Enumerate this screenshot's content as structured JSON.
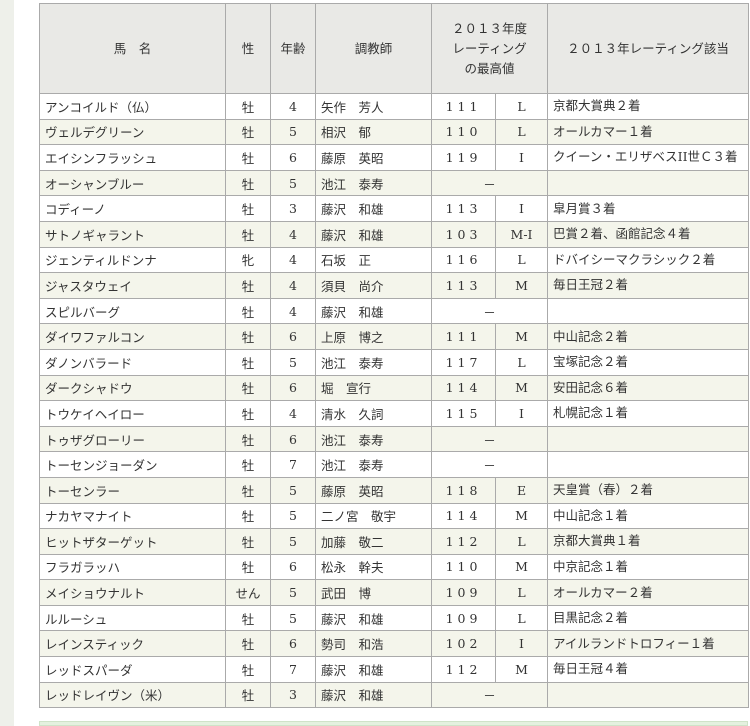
{
  "table": {
    "headers": {
      "name": "馬　名",
      "sex": "性",
      "age": "年齢",
      "trainer": "調教師",
      "rating": "２０１３年度\nレーティング\nの最高値",
      "race": "２０１３年レーティング該当"
    },
    "rows": [
      [
        "アンコイルド（仏）",
        "牡",
        "4",
        "矢作　芳人",
        "111",
        "L",
        "京都大賞典２着"
      ],
      [
        "ヴェルデグリーン",
        "牡",
        "5",
        "相沢　郁",
        "110",
        "L",
        "オールカマー１着"
      ],
      [
        "エイシンフラッシュ",
        "牡",
        "6",
        "藤原　英昭",
        "119",
        "I",
        "クイーン・エリザベスII世Ｃ３着"
      ],
      [
        "オーシャンブルー",
        "牡",
        "5",
        "池江　泰寿",
        "－",
        "",
        ""
      ],
      [
        "コディーノ",
        "牡",
        "3",
        "藤沢　和雄",
        "113",
        "I",
        "皐月賞３着"
      ],
      [
        "サトノギャラント",
        "牡",
        "4",
        "藤沢　和雄",
        "103",
        "M-I",
        "巴賞２着、函館記念４着"
      ],
      [
        "ジェンティルドンナ",
        "牝",
        "4",
        "石坂　正",
        "116",
        "L",
        "ドバイシーマクラシック２着"
      ],
      [
        "ジャスタウェイ",
        "牡",
        "4",
        "須貝　尚介",
        "113",
        "M",
        "毎日王冠２着"
      ],
      [
        "スピルバーグ",
        "牡",
        "4",
        "藤沢　和雄",
        "－",
        "",
        ""
      ],
      [
        "ダイワファルコン",
        "牡",
        "6",
        "上原　博之",
        "111",
        "M",
        "中山記念２着"
      ],
      [
        "ダノンバラード",
        "牡",
        "5",
        "池江　泰寿",
        "117",
        "L",
        "宝塚記念２着"
      ],
      [
        "ダークシャドウ",
        "牡",
        "6",
        "堀　宣行",
        "114",
        "M",
        "安田記念６着"
      ],
      [
        "トウケイヘイロー",
        "牡",
        "4",
        "清水　久詞",
        "115",
        "I",
        "札幌記念１着"
      ],
      [
        "トゥザグローリー",
        "牡",
        "6",
        "池江　泰寿",
        "－",
        "",
        ""
      ],
      [
        "トーセンジョーダン",
        "牡",
        "7",
        "池江　泰寿",
        "－",
        "",
        ""
      ],
      [
        "トーセンラー",
        "牡",
        "5",
        "藤原　英昭",
        "118",
        "E",
        "天皇賞（春）２着"
      ],
      [
        "ナカヤマナイト",
        "牡",
        "5",
        "二ノ宮　敬宇",
        "114",
        "M",
        "中山記念１着"
      ],
      [
        "ヒットザターゲット",
        "牡",
        "5",
        "加藤　敬二",
        "112",
        "L",
        "京都大賞典１着"
      ],
      [
        "フラガラッハ",
        "牡",
        "6",
        "松永　幹夫",
        "110",
        "M",
        "中京記念１着"
      ],
      [
        "メイショウナルト",
        "せん",
        "5",
        "武田　博",
        "109",
        "L",
        "オールカマー２着"
      ],
      [
        "ルルーシュ",
        "牡",
        "5",
        "藤沢　和雄",
        "109",
        "L",
        "目黒記念２着"
      ],
      [
        "レインスティック",
        "牡",
        "6",
        "勢司　和浩",
        "102",
        "I",
        "アイルランドトロフィー１着"
      ],
      [
        "レッドスパーダ",
        "牡",
        "7",
        "藤沢　和雄",
        "112",
        "M",
        "毎日王冠４着"
      ],
      [
        "レッドレイヴン（米）",
        "牡",
        "3",
        "藤沢　和雄",
        "－",
        "",
        ""
      ]
    ]
  }
}
